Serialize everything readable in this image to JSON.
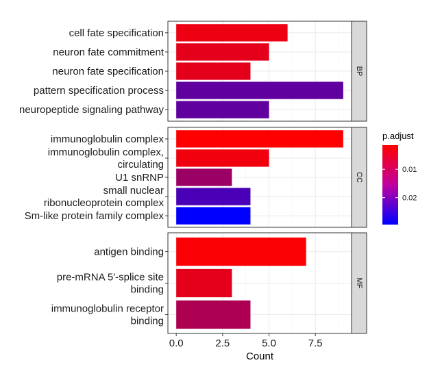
{
  "chart_data": {
    "type": "bar",
    "orientation": "horizontal",
    "xlabel": "Count",
    "ylabel": "",
    "xlim": [
      -0.45,
      9.45
    ],
    "x_ticks": [
      0,
      2.5,
      5,
      7.5
    ],
    "x_tick_labels": [
      "0.0",
      "2.5",
      "5.0",
      "7.5"
    ],
    "grid": true,
    "facets": [
      {
        "strip_label": "BP",
        "categories": [
          {
            "label_lines": [
              "cell fate specification"
            ],
            "count": 6,
            "p_adjust": 0.0035
          },
          {
            "label_lines": [
              "neuron fate commitment"
            ],
            "count": 5,
            "p_adjust": 0.0045
          },
          {
            "label_lines": [
              "neuron fate specification"
            ],
            "count": 4,
            "p_adjust": 0.0045
          },
          {
            "label_lines": [
              "pattern specification process"
            ],
            "count": 9,
            "p_adjust": 0.019
          },
          {
            "label_lines": [
              "neuropeptide signaling pathway"
            ],
            "count": 5,
            "p_adjust": 0.019
          }
        ]
      },
      {
        "strip_label": "CC",
        "categories": [
          {
            "label_lines": [
              "immunoglobulin complex"
            ],
            "count": 9,
            "p_adjust": 0.0015
          },
          {
            "label_lines": [
              "immunoglobulin complex,",
              "circulating"
            ],
            "count": 5,
            "p_adjust": 0.003
          },
          {
            "label_lines": [
              "U1 snRNP"
            ],
            "count": 3,
            "p_adjust": 0.0125
          },
          {
            "label_lines": [
              "small nuclear",
              "ribonucleoprotein complex"
            ],
            "count": 4,
            "p_adjust": 0.0215
          },
          {
            "label_lines": [
              "Sm-like protein family complex"
            ],
            "count": 4,
            "p_adjust": 0.0295
          }
        ]
      },
      {
        "strip_label": "MF",
        "categories": [
          {
            "label_lines": [
              "antigen binding"
            ],
            "count": 7,
            "p_adjust": 0.002
          },
          {
            "label_lines": [
              "pre-mRNA 5'-splice site",
              "binding"
            ],
            "count": 3,
            "p_adjust": 0.0045
          },
          {
            "label_lines": [
              "immunoglobulin receptor",
              "binding"
            ],
            "count": 4,
            "p_adjust": 0.0105
          }
        ]
      }
    ],
    "legend": {
      "title": "p.adjust",
      "position": "right",
      "range": [
        0.0015,
        0.0295
      ],
      "ticks": [
        0.01,
        0.02
      ],
      "tick_labels": [
        "0.01",
        "0.02"
      ],
      "color_low": "#ff0000",
      "color_high": "#0000ff"
    }
  }
}
